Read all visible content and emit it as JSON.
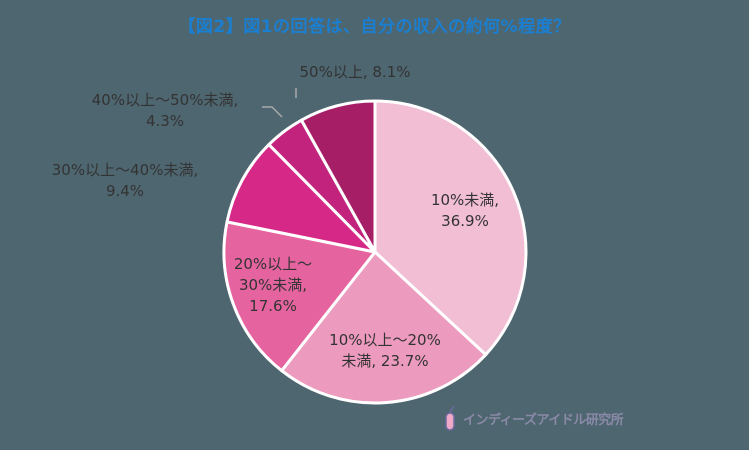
{
  "title": "【図2】図1の回答は、自分の収入の約何%程度？",
  "chart_data": {
    "type": "pie",
    "title": "【図2】図1の回答は、自分の収入の約何%程度？",
    "categories": [
      "10%未満",
      "10%以上～20%未満",
      "20%以上～30%未満",
      "30%以上～40%未満",
      "40%以上～50%未満",
      "50%以上"
    ],
    "values": [
      36.9,
      23.7,
      17.6,
      9.4,
      4.3,
      8.1
    ],
    "colors": [
      "#f1bed3",
      "#ec9abd",
      "#e5649f",
      "#d62987",
      "#c2237d",
      "#a61f66"
    ],
    "start_angle": "12 o'clock, clockwise",
    "legend": "none (direct labels)"
  },
  "labels": [
    {
      "line1": "10%未満,",
      "line2": "36.9%"
    },
    {
      "line1": "10%以上～20%",
      "line2": "未満, 23.7%"
    },
    {
      "line1": "20%以上～",
      "line2": "30%未満,",
      "line3": "17.6%"
    },
    {
      "line1": "30%以上～40%未満,",
      "line2": "9.4%"
    },
    {
      "line1": "40%以上～50%未満,",
      "line2": "4.3%"
    },
    {
      "line1": "50%以上, 8.1%"
    }
  ],
  "logo": {
    "text": "インディーズアイドル研究所"
  }
}
